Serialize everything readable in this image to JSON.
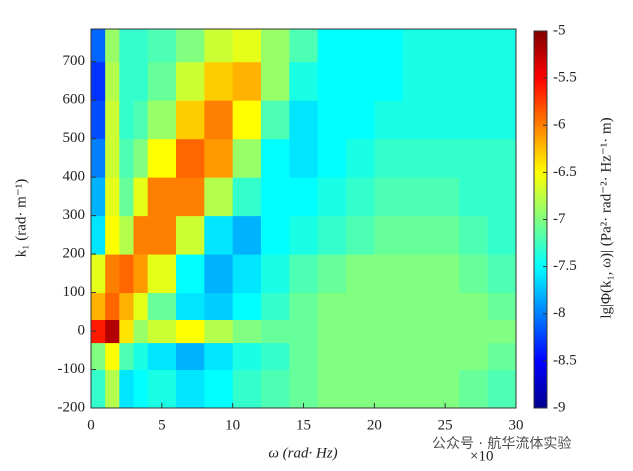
{
  "chart_data": {
    "type": "heatmap",
    "x_label": "ω (rad· Hz)",
    "x_multiplier": "×10",
    "y_label": "k₁ (rad· m⁻¹)",
    "colorbar_label": "lg|Φ(k₁, ω)| (Pa²· rad⁻²· Hz⁻¹· m)",
    "watermark": "公众号 · 航华流体实验",
    "colormap": "jet",
    "x_edges": [
      0,
      1,
      2,
      3,
      4,
      6,
      8,
      10,
      12,
      14,
      16,
      18,
      20,
      22,
      24,
      26,
      28,
      30
    ],
    "y_edges": [
      -200,
      -100,
      -30,
      30,
      100,
      200,
      300,
      400,
      500,
      600,
      700,
      785
    ],
    "z": [
      [
        -7.3,
        -6.8,
        -7.6,
        -7.5,
        -7.4,
        -7.6,
        -7.5,
        -7.3,
        -7.2,
        -7.1,
        -7.0,
        -7.0,
        -7.0,
        -7.0,
        -7.0,
        -7.1,
        -7.2
      ],
      [
        -7.0,
        -6.5,
        -7.2,
        -7.4,
        -7.6,
        -7.8,
        -7.6,
        -7.4,
        -7.3,
        -7.1,
        -7.0,
        -7.0,
        -7.0,
        -7.0,
        -7.0,
        -7.0,
        -7.1
      ],
      [
        -5.6,
        -5.2,
        -6.4,
        -6.9,
        -6.7,
        -6.5,
        -6.8,
        -7.0,
        -7.1,
        -7.1,
        -7.0,
        -7.0,
        -7.0,
        -7.0,
        -7.0,
        -7.0,
        -7.0
      ],
      [
        -6.2,
        -5.9,
        -6.2,
        -6.6,
        -7.1,
        -7.6,
        -7.7,
        -7.5,
        -7.3,
        -7.1,
        -7.0,
        -7.0,
        -7.0,
        -7.0,
        -7.0,
        -7.0,
        -7.1
      ],
      [
        -6.6,
        -6.0,
        -5.9,
        -6.1,
        -6.6,
        -7.5,
        -7.8,
        -7.6,
        -7.4,
        -7.2,
        -7.1,
        -7.0,
        -7.0,
        -7.0,
        -7.0,
        -7.1,
        -7.2
      ],
      [
        -7.6,
        -6.5,
        -6.8,
        -6.0,
        -6.0,
        -6.7,
        -7.6,
        -7.8,
        -7.5,
        -7.4,
        -7.3,
        -7.2,
        -7.1,
        -7.1,
        -7.1,
        -7.2,
        -7.3
      ],
      [
        -7.8,
        -6.6,
        -7.1,
        -6.6,
        -6.0,
        -6.0,
        -6.8,
        -7.3,
        -7.5,
        -7.5,
        -7.4,
        -7.3,
        -7.2,
        -7.2,
        -7.2,
        -7.3,
        -7.3
      ],
      [
        -8.0,
        -6.7,
        -7.2,
        -7.0,
        -6.5,
        -5.9,
        -6.1,
        -6.9,
        -7.5,
        -7.6,
        -7.5,
        -7.4,
        -7.3,
        -7.3,
        -7.3,
        -7.3,
        -7.3
      ],
      [
        -8.2,
        -6.7,
        -7.3,
        -7.2,
        -6.9,
        -6.3,
        -6.0,
        -6.5,
        -7.2,
        -7.6,
        -7.5,
        -7.5,
        -7.4,
        -7.4,
        -7.4,
        -7.4,
        -7.4
      ],
      [
        -8.3,
        -6.8,
        -7.3,
        -7.3,
        -7.1,
        -6.7,
        -6.3,
        -6.2,
        -6.9,
        -7.4,
        -7.5,
        -7.5,
        -7.5,
        -7.4,
        -7.4,
        -7.4,
        -7.4
      ],
      [
        -8.1,
        -6.9,
        -7.3,
        -7.3,
        -7.2,
        -7.0,
        -6.7,
        -6.6,
        -6.9,
        -7.2,
        -7.5,
        -7.5,
        -7.5,
        -7.4,
        -7.4,
        -7.4,
        -7.4
      ]
    ],
    "xlim": [
      0,
      30
    ],
    "xticks": [
      0,
      5,
      10,
      15,
      20,
      25,
      30
    ],
    "ylim": [
      -200,
      785
    ],
    "yticks": [
      -200,
      -100,
      0,
      100,
      200,
      300,
      400,
      500,
      600,
      700
    ],
    "zlim": [
      -9,
      -5
    ],
    "zticks": [
      -9,
      -8.5,
      -8,
      -7.5,
      -7,
      -6.5,
      -6,
      -5.5,
      -5
    ]
  }
}
